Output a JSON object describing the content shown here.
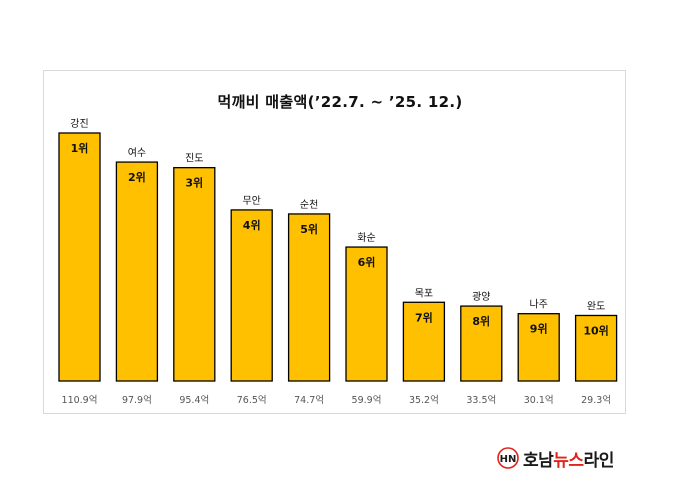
{
  "chart_data": {
    "type": "bar",
    "title": "먹깨비 매출액(’22.7. ~ ’25. 12.)",
    "categories": [
      "강진",
      "여수",
      "진도",
      "무안",
      "순천",
      "화순",
      "목포",
      "광양",
      "나주",
      "완도"
    ],
    "values": [
      110.9,
      97.9,
      95.4,
      76.5,
      74.7,
      59.9,
      35.2,
      33.5,
      30.1,
      29.3
    ],
    "value_labels": [
      "110.9억",
      "97.9억",
      "95.4억",
      "76.5억",
      "74.7억",
      "59.9억",
      "35.2억",
      "33.5억",
      "30.1억",
      "29.3억"
    ],
    "rank_labels": [
      "1위",
      "2위",
      "3위",
      "4위",
      "5위",
      "6위",
      "7위",
      "8위",
      "9위",
      "10위"
    ],
    "unit": "억",
    "ylim": [
      0,
      110.9
    ],
    "grid": false,
    "legend": "none",
    "colors": {
      "bar_fill": "#ffc000",
      "bar_stroke": "#000000"
    }
  },
  "logo": {
    "mark": "HN",
    "text_black_1": "호남",
    "text_red": "뉴스",
    "text_black_2": "라인"
  }
}
